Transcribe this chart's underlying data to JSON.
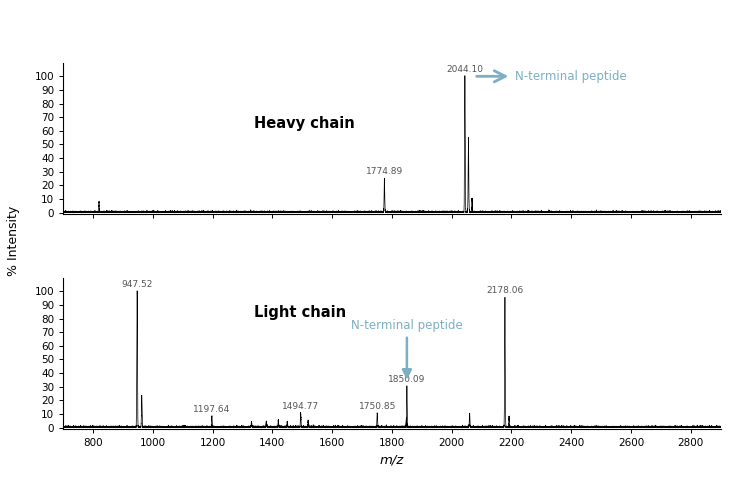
{
  "xlabel": "m/z",
  "ylabel": "% Intensity",
  "x_range": [
    700,
    2900
  ],
  "x_ticks": [
    800,
    1000,
    1200,
    1400,
    1600,
    1800,
    2000,
    2200,
    2400,
    2600,
    2800
  ],
  "y_ticks": [
    0,
    10,
    20,
    30,
    40,
    50,
    60,
    70,
    80,
    90,
    100
  ],
  "heavy_chain_label": "Heavy chain",
  "light_chain_label": "Light chain",
  "heavy_peaks": [
    {
      "mz": 820,
      "intensity": 8
    },
    {
      "mz": 1774.89,
      "intensity": 25
    },
    {
      "mz": 2044.1,
      "intensity": 100
    },
    {
      "mz": 2056,
      "intensity": 55
    },
    {
      "mz": 2068,
      "intensity": 10
    }
  ],
  "light_peaks": [
    {
      "mz": 947.52,
      "intensity": 100
    },
    {
      "mz": 963,
      "intensity": 23
    },
    {
      "mz": 1197.64,
      "intensity": 8
    },
    {
      "mz": 1330,
      "intensity": 4
    },
    {
      "mz": 1380,
      "intensity": 4
    },
    {
      "mz": 1420,
      "intensity": 5
    },
    {
      "mz": 1450,
      "intensity": 4
    },
    {
      "mz": 1494.77,
      "intensity": 10
    },
    {
      "mz": 1520,
      "intensity": 5
    },
    {
      "mz": 1750.85,
      "intensity": 10
    },
    {
      "mz": 1850.09,
      "intensity": 30
    },
    {
      "mz": 2060,
      "intensity": 10
    },
    {
      "mz": 2178.06,
      "intensity": 95
    },
    {
      "mz": 2192,
      "intensity": 8
    }
  ],
  "arrow_color": "#7BAFC4",
  "peak_label_color": "#555555",
  "chain_label_color": "#000000",
  "background_color": "#FFFFFF",
  "heavy_annotation_label": "N-terminal peptide",
  "light_annotation_label": "N-terminal peptide",
  "heavy_annotation_mz": 2044.1,
  "light_annotation_mz": 1850.09,
  "heavy_peak_labels": [
    {
      "mz": 2044.1,
      "intensity": 100,
      "label": "2044.10"
    },
    {
      "mz": 1774.89,
      "intensity": 25,
      "label": "1774.89"
    }
  ],
  "light_peak_labels": [
    {
      "mz": 947.52,
      "intensity": 100,
      "label": "947.52"
    },
    {
      "mz": 2178.06,
      "intensity": 95,
      "label": "2178.06"
    },
    {
      "mz": 1197.64,
      "intensity": 8,
      "label": "1197.64"
    },
    {
      "mz": 1494.77,
      "intensity": 10,
      "label": "1494.77"
    },
    {
      "mz": 1750.85,
      "intensity": 10,
      "label": "1750.85"
    },
    {
      "mz": 1850.09,
      "intensity": 30,
      "label": "1850.09"
    }
  ]
}
